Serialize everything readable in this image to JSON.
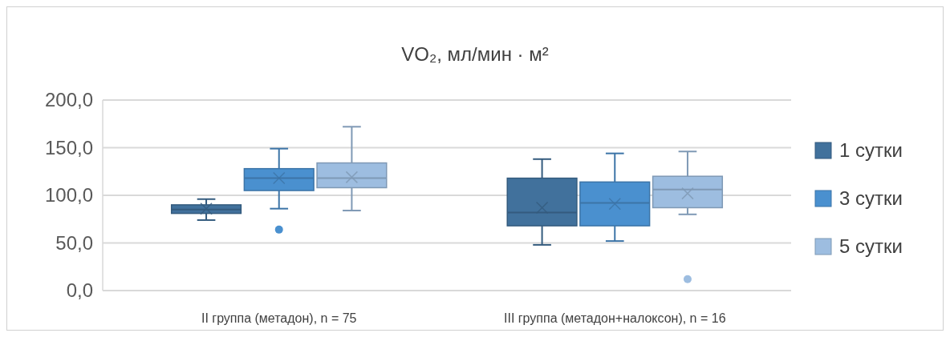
{
  "chart_data": {
    "type": "box",
    "title": "VO₂, мл/мин · м²",
    "categories": [
      "II группа (метадон), n = 75",
      "III группа (метадон+налоксон), n = 16"
    ],
    "ylim": [
      0,
      200
    ],
    "yticks": [
      {
        "value": 0,
        "label": "0,0"
      },
      {
        "value": 50,
        "label": "50,0"
      },
      {
        "value": 100,
        "label": "100,0"
      },
      {
        "value": 150,
        "label": "150,0"
      },
      {
        "value": 200,
        "label": "200,0"
      }
    ],
    "grid": "y",
    "legend": "right",
    "series": [
      {
        "name": "1 сутки",
        "color": "#41719c",
        "boxes": [
          {
            "low": 74,
            "q1": 81,
            "median": 85,
            "q3": 90,
            "high": 96,
            "mean": 86
          },
          {
            "low": 48,
            "q1": 68,
            "median": 82,
            "q3": 118,
            "high": 138,
            "mean": 87
          }
        ]
      },
      {
        "name": "3 сутки",
        "color": "#4a90cf",
        "boxes": [
          {
            "low": 86,
            "q1": 105,
            "median": 118,
            "q3": 128,
            "high": 149,
            "mean": 118,
            "outliers": [
              64
            ]
          },
          {
            "low": 52,
            "q1": 68,
            "median": 92,
            "q3": 114,
            "high": 144,
            "mean": 91
          }
        ]
      },
      {
        "name": "5 сутки",
        "color": "#9dbde0",
        "boxes": [
          {
            "low": 84,
            "q1": 108,
            "median": 118,
            "q3": 134,
            "high": 172,
            "mean": 119
          },
          {
            "low": 80,
            "q1": 87,
            "median": 106,
            "q3": 120,
            "high": 146,
            "mean": 102,
            "outliers": [
              12
            ]
          }
        ]
      }
    ]
  }
}
